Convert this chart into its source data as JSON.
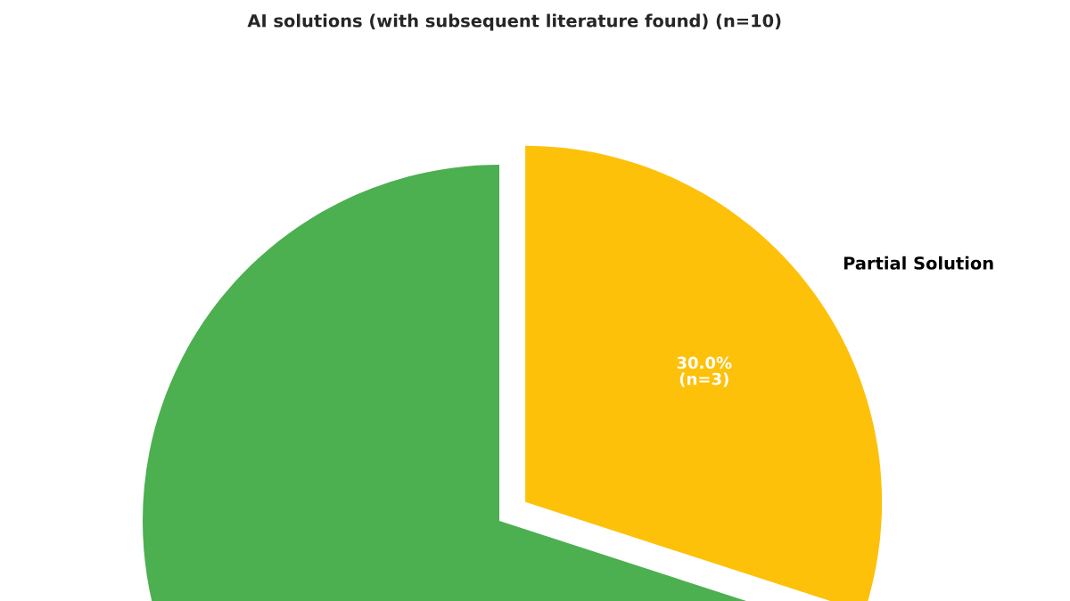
{
  "chart_data": {
    "type": "pie",
    "title": "AI solutions (with subsequent literature found) (n=10)",
    "categories": [
      "Partial Solution",
      null
    ],
    "values": [
      30,
      70
    ],
    "colors": [
      "#fdc10a",
      "#4caf50"
    ],
    "value_labels": [
      "30.0%\n(n=3)",
      null
    ]
  }
}
